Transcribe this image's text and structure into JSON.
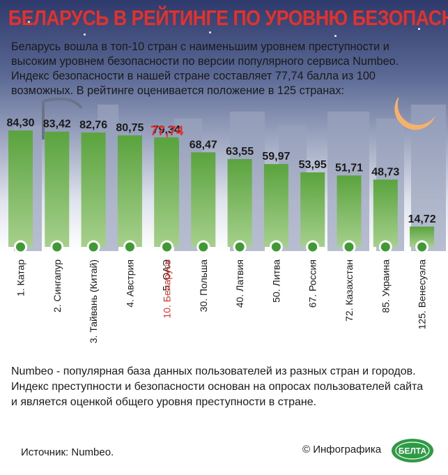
{
  "title": "БЕЛАРУСЬ В РЕЙТИНГЕ ПО УРОВНЮ БЕЗОПАСНОСТИ",
  "intro": "Беларусь вошла в топ-10 стран с наименьшим уровнем преступности и высоким уровнем безопасности по версии популярного сервиса Numbeo. Индекс безопасности в нашей стране составляет 77,74 балла из 100 возможных. В рейтинге оценивается положение в 125 странах:",
  "colors": {
    "title": "#e4312b",
    "highlight": "#e4312b",
    "bar_light": "#a6d08c",
    "bar_dark": "#5aa33e",
    "dot": "#3f9a35"
  },
  "chart_data": {
    "type": "bar",
    "categories": [
      "1. Катар",
      "2. Сингапур",
      "3. Тайвань (Китай)",
      "4. Австрия",
      "5. ОАЭ",
      "10. Беларусь",
      "30. Польша",
      "40. Латвия",
      "50. Литва",
      "67. Россия",
      "72. Казахстан",
      "85. Украина",
      "125. Венесуэла"
    ],
    "values": [
      84.3,
      83.42,
      82.76,
      80.75,
      79.34,
      77.74,
      68.47,
      63.55,
      59.97,
      53.95,
      51.71,
      48.73,
      14.72
    ],
    "value_labels": [
      "84,30",
      "83,42",
      "82,76",
      "80,75",
      "79,34",
      "77,74",
      "68,47",
      "63,55",
      "59,97",
      "53,95",
      "51,71",
      "48,73",
      "14,72"
    ],
    "highlight_index": 5,
    "ylim": [
      0,
      100
    ]
  },
  "footnote": "Numbeo - популярная база данных пользователей из разных стран и городов. Индекс преступности и безопасности основан на опросах пользователей сайта и является оценкой общего уровня преступности в стране.",
  "source": "Источник: Numbeo.",
  "credit": "© Инфографика",
  "logo_text": "БЕЛТА"
}
